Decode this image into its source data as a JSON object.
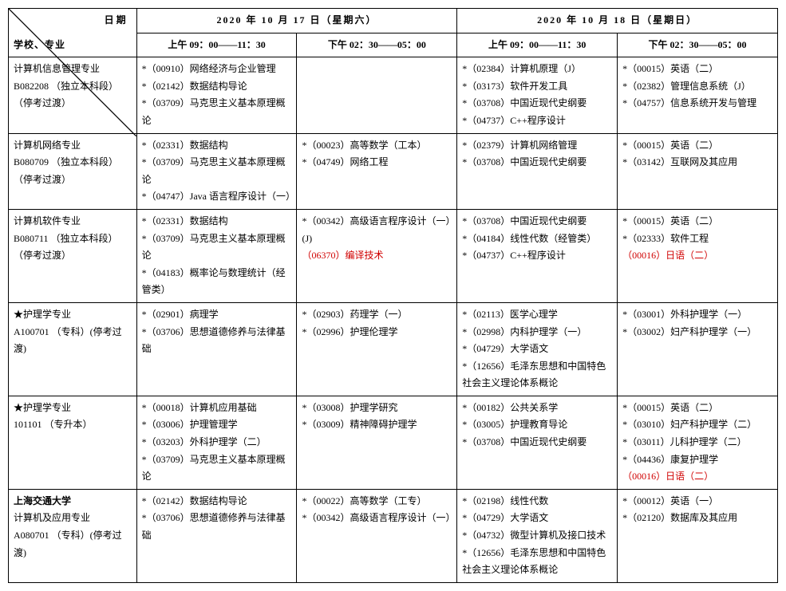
{
  "colors": {
    "text": "#000000",
    "border": "#000000",
    "background": "#ffffff",
    "highlight_red": "#d00000"
  },
  "typography": {
    "font_family": "SimSun",
    "header_size_pt": 12,
    "body_size_pt": 12,
    "line_height": 1.8
  },
  "header": {
    "diag_top": "日期",
    "diag_bottom": "学校、专业",
    "days": [
      {
        "date_label": "2020 年 10 月 17 日（星期六）",
        "slots": [
          "上午 09：00——11：30",
          "下午 02：30——05：00"
        ]
      },
      {
        "date_label": "2020 年 10 月 18 日（星期日）",
        "slots": [
          "上午 09：00——11：30",
          "下午 02：30——05：00"
        ]
      }
    ]
  },
  "rows": [
    {
      "major_lines": [
        "计算机信息管理专业",
        "B082208   （独立本科段）",
        "（停考过渡）"
      ],
      "major_bold": false,
      "slots": [
        [
          {
            "t": "*（00910）网络经济与企业管理"
          },
          {
            "t": "*（02142）数据结构导论"
          },
          {
            "t": "*（03709）马克思主义基本原理概论"
          }
        ],
        [],
        [
          {
            "t": "*（02384）计算机原理（J）"
          },
          {
            "t": "*（03173）软件开发工具"
          },
          {
            "t": "*（03708）中国近现代史纲要"
          },
          {
            "t": "*（04737）C++程序设计"
          }
        ],
        [
          {
            "t": "*（00015）英语（二）"
          },
          {
            "t": "*（02382）管理信息系统（J）"
          },
          {
            "t": "*（04757）信息系统开发与管理"
          }
        ]
      ]
    },
    {
      "major_lines": [
        "计算机网络专业",
        "B080709   （独立本科段）",
        "（停考过渡）"
      ],
      "major_bold": false,
      "slots": [
        [
          {
            "t": "*（02331）数据结构"
          },
          {
            "t": "*（03709）马克思主义基本原理概论"
          },
          {
            "t": "*（04747）Java 语言程序设计（一）"
          }
        ],
        [
          {
            "t": "*（00023）高等数学（工本）"
          },
          {
            "t": "*（04749）网络工程"
          }
        ],
        [
          {
            "t": "*（02379）计算机网络管理"
          },
          {
            "t": "*（03708）中国近现代史纲要"
          }
        ],
        [
          {
            "t": "*（00015）英语（二）"
          },
          {
            "t": "*（03142）互联网及其应用"
          }
        ]
      ]
    },
    {
      "major_lines": [
        "计算机软件专业",
        "B080711   （独立本科段）",
        "（停考过渡）"
      ],
      "major_bold": false,
      "slots": [
        [
          {
            "t": "*（02331）数据结构"
          },
          {
            "t": "*（03709）马克思主义基本原理概论"
          },
          {
            "t": "*（04183）概率论与数理统计（经管类）"
          }
        ],
        [
          {
            "t": "*（00342）高级语言程序设计（一）(J)"
          },
          {
            "t": "（06370）编译技术",
            "red": true
          }
        ],
        [
          {
            "t": "*（03708）中国近现代史纲要"
          },
          {
            "t": "*（04184）线性代数（经管类）"
          },
          {
            "t": "*（04737）C++程序设计"
          }
        ],
        [
          {
            "t": "*（00015）英语（二）"
          },
          {
            "t": "*（02333）软件工程"
          },
          {
            "t": "（00016）日语（二）",
            "red": true
          }
        ]
      ]
    },
    {
      "major_lines": [
        "★护理学专业",
        "A100701   （专科）(停考过渡)"
      ],
      "major_bold": false,
      "slots": [
        [
          {
            "t": "*（02901）病理学"
          },
          {
            "t": "*（03706）思想道德修养与法律基础"
          }
        ],
        [
          {
            "t": "*（02903）药理学（一）"
          },
          {
            "t": "*（02996）护理伦理学"
          }
        ],
        [
          {
            "t": "*（02113）医学心理学"
          },
          {
            "t": "*（02998）内科护理学（一）"
          },
          {
            "t": "*（04729）大学语文"
          },
          {
            "t": "*（12656）毛泽东思想和中国特色社会主义理论体系概论"
          }
        ],
        [
          {
            "t": "*（03001）外科护理学（一）"
          },
          {
            "t": "*（03002）妇产科护理学（一）"
          }
        ]
      ]
    },
    {
      "major_lines": [
        "★护理学专业",
        "101101   （专升本）"
      ],
      "major_bold": false,
      "slots": [
        [
          {
            "t": "*（00018）计算机应用基础"
          },
          {
            "t": "*（03006）护理管理学"
          },
          {
            "t": "*（03203）外科护理学（二）"
          },
          {
            "t": "*（03709）马克思主义基本原理概论"
          }
        ],
        [
          {
            "t": "*（03008）护理学研究"
          },
          {
            "t": "*（03009）精神障碍护理学"
          }
        ],
        [
          {
            "t": "*（00182）公共关系学"
          },
          {
            "t": "*（03005）护理教育导论"
          },
          {
            "t": "*（03708）中国近现代史纲要"
          }
        ],
        [
          {
            "t": "*（00015）英语（二）"
          },
          {
            "t": "*（03010）妇产科护理学（二）"
          },
          {
            "t": "*（03011）儿科护理学（二）"
          },
          {
            "t": "*（04436）康复护理学"
          },
          {
            "t": "（00016）日语（二）",
            "red": true
          }
        ]
      ]
    },
    {
      "major_lines": [
        "上海交通大学",
        "计算机及应用专业",
        "A080701   （专科）(停考过渡)"
      ],
      "major_bold": true,
      "major_bold_lines": [
        0
      ],
      "slots": [
        [
          {
            "t": "*（02142）数据结构导论"
          },
          {
            "t": "*（03706）思想道德修养与法律基础"
          }
        ],
        [
          {
            "t": "*（00022）高等数学（工专）"
          },
          {
            "t": "*（00342）高级语言程序设计（一）"
          }
        ],
        [
          {
            "t": "*（02198）线性代数"
          },
          {
            "t": "*（04729）大学语文"
          },
          {
            "t": "*（04732）微型计算机及接口技术"
          },
          {
            "t": "*（12656）毛泽东思想和中国特色社会主义理论体系概论"
          }
        ],
        [
          {
            "t": "*（00012）英语（一）"
          },
          {
            "t": "*（02120）数据库及其应用"
          }
        ]
      ]
    }
  ]
}
